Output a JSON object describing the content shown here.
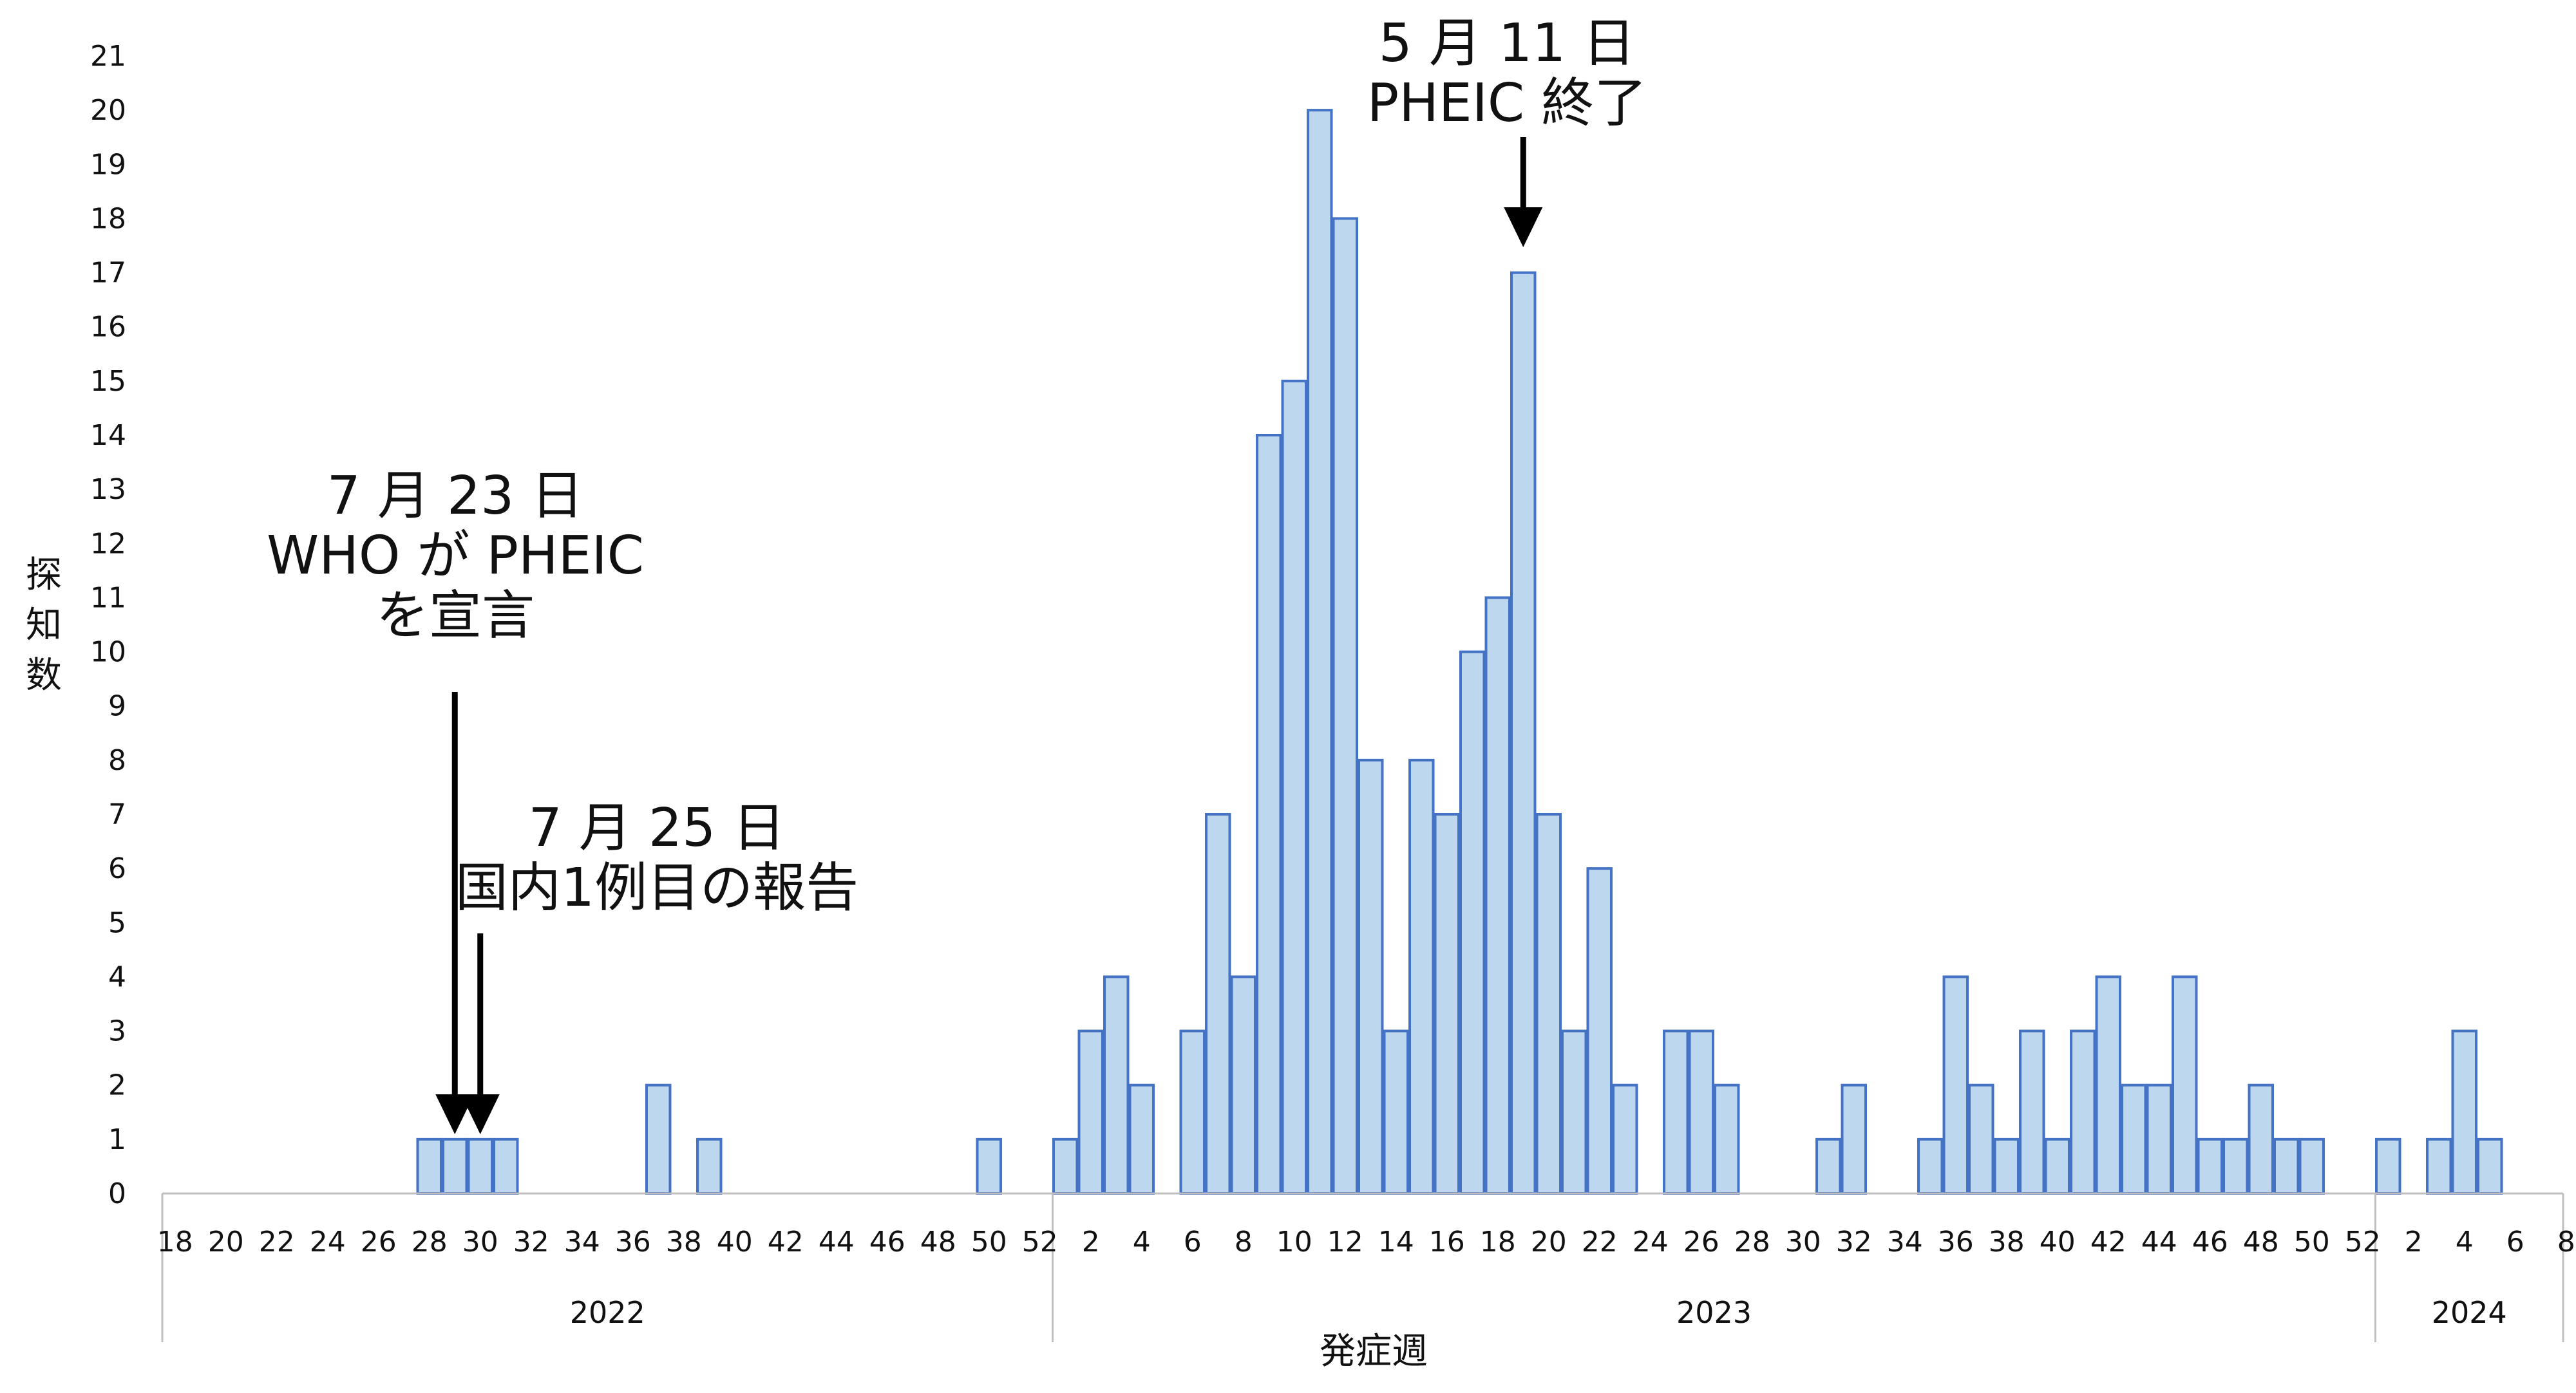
{
  "chart_data": {
    "type": "bar",
    "xlabel": "発症週",
    "ylabel": "探知数",
    "ylim": [
      0,
      21
    ],
    "yticks": [
      "0",
      "1",
      "2",
      "3",
      "4",
      "5",
      "6",
      "7",
      "8",
      "9",
      "10",
      "11",
      "12",
      "13",
      "14",
      "15",
      "16",
      "17",
      "18",
      "19",
      "20",
      "21"
    ],
    "bar_color": "#bdd7ee",
    "bar_edge_color": "#4472c4",
    "groups": [
      {
        "year": "2022",
        "weeks": [
          18,
          19,
          20,
          21,
          22,
          23,
          24,
          25,
          26,
          27,
          28,
          29,
          30,
          31,
          32,
          33,
          34,
          35,
          36,
          37,
          38,
          39,
          40,
          41,
          42,
          43,
          44,
          45,
          46,
          47,
          48,
          49,
          50,
          51,
          52
        ],
        "values": [
          0,
          0,
          0,
          0,
          0,
          0,
          0,
          0,
          0,
          0,
          1,
          1,
          1,
          1,
          0,
          0,
          0,
          0,
          0,
          2,
          0,
          1,
          0,
          0,
          0,
          0,
          0,
          0,
          0,
          0,
          0,
          0,
          1,
          0,
          0
        ]
      },
      {
        "year": "2023",
        "weeks": [
          1,
          2,
          3,
          4,
          5,
          6,
          7,
          8,
          9,
          10,
          11,
          12,
          13,
          14,
          15,
          16,
          17,
          18,
          19,
          20,
          21,
          22,
          23,
          24,
          25,
          26,
          27,
          28,
          29,
          30,
          31,
          32,
          33,
          34,
          35,
          36,
          37,
          38,
          39,
          40,
          41,
          42,
          43,
          44,
          45,
          46,
          47,
          48,
          49,
          50,
          51,
          52
        ],
        "values": [
          1,
          3,
          4,
          2,
          0,
          3,
          7,
          4,
          14,
          15,
          20,
          18,
          8,
          3,
          8,
          7,
          10,
          11,
          17,
          7,
          3,
          6,
          2,
          0,
          3,
          3,
          2,
          0,
          0,
          0,
          1,
          2,
          0,
          0,
          1,
          4,
          2,
          1,
          3,
          1,
          3,
          4,
          2,
          2,
          4,
          1,
          1,
          2,
          1,
          1,
          0,
          0
        ]
      },
      {
        "year": "2024",
        "weeks": [
          1,
          2,
          3,
          4,
          5,
          6,
          7,
          8
        ],
        "values": [
          1,
          0,
          1,
          3,
          1,
          0,
          0,
          0
        ]
      }
    ],
    "xtick_labels": {
      "2022": [
        "18",
        "20",
        "22",
        "24",
        "26",
        "28",
        "30",
        "32",
        "34",
        "36",
        "38",
        "40",
        "42",
        "44",
        "46",
        "48",
        "50",
        "52"
      ],
      "2023": [
        "2",
        "4",
        "6",
        "8",
        "10",
        "12",
        "14",
        "16",
        "18",
        "20",
        "22",
        "24",
        "26",
        "28",
        "30",
        "32",
        "34",
        "36",
        "38",
        "40",
        "42",
        "44",
        "46",
        "48",
        "50",
        "52"
      ],
      "2024": [
        "2",
        "4",
        "6",
        "8"
      ]
    },
    "annotations": [
      {
        "lines": [
          "7 月 23 日",
          "WHO が PHEIC",
          "を宣言"
        ],
        "year": "2022",
        "week": 29
      },
      {
        "lines": [
          "7 月 25 日",
          "国内1例目の報告"
        ],
        "year": "2022",
        "week": 30
      },
      {
        "lines": [
          "5 月 11 日",
          "PHEIC 終了"
        ],
        "year": "2023",
        "week": 19
      }
    ]
  }
}
